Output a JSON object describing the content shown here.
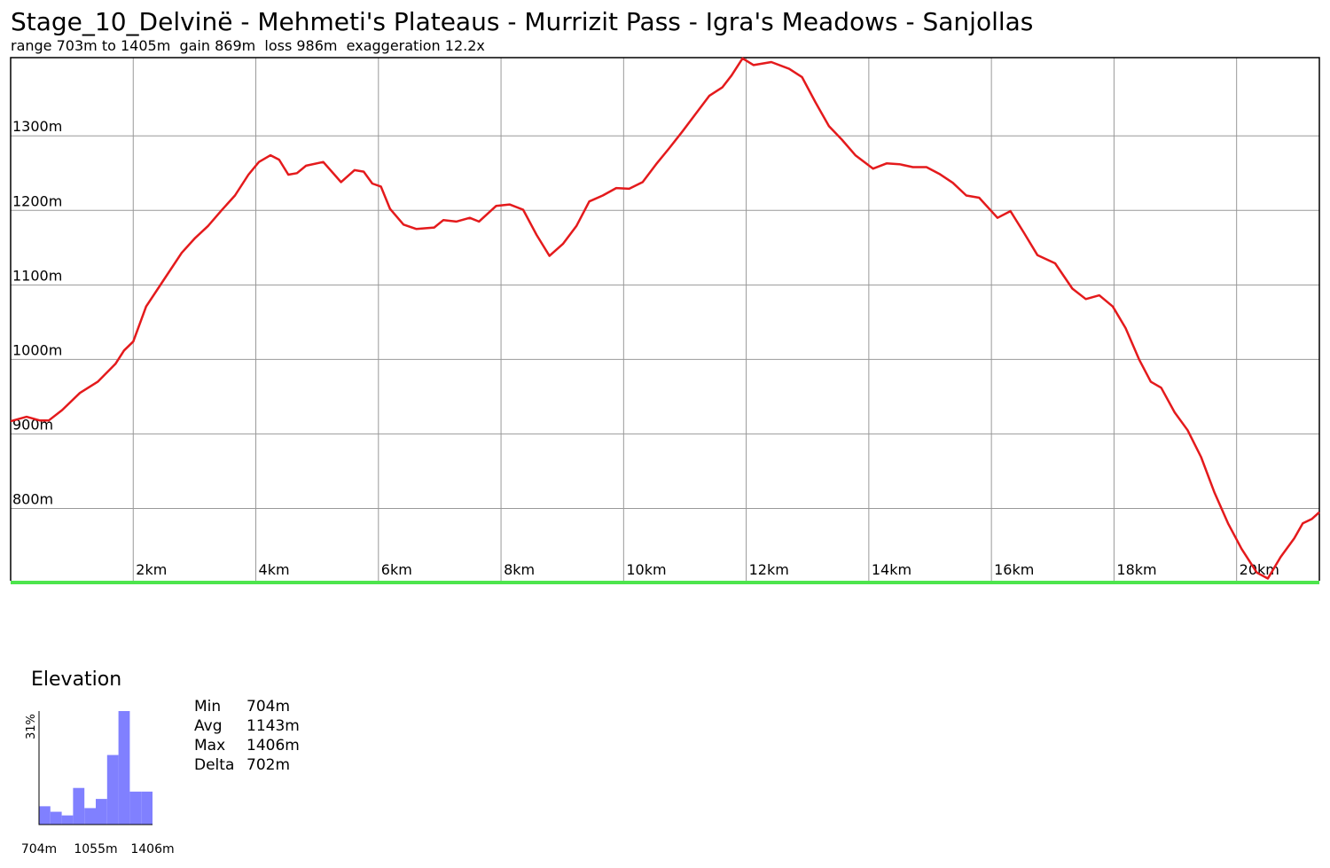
{
  "chart_data": [
    {
      "type": "line",
      "title": "Stage_10_Delvinë - Mehmeti's Plateaus - Murrizit Pass - Igra's Meadows - Sanjollas",
      "subtitle": "range 703m to 1405m  gain 869m  loss 986m  exaggeration 12.2x",
      "color": "#e41a1c",
      "grid": true,
      "xlim": [
        0,
        21.35
      ],
      "ylim": [
        703,
        1405
      ],
      "xticks": [
        {
          "value": 2,
          "label": "2km"
        },
        {
          "value": 4,
          "label": "4km"
        },
        {
          "value": 6,
          "label": "6km"
        },
        {
          "value": 8,
          "label": "8km"
        },
        {
          "value": 10,
          "label": "10km"
        },
        {
          "value": 12,
          "label": "12km"
        },
        {
          "value": 14,
          "label": "14km"
        },
        {
          "value": 16,
          "label": "16km"
        },
        {
          "value": 18,
          "label": "18km"
        },
        {
          "value": 20,
          "label": "20km"
        }
      ],
      "yticks": [
        {
          "value": 800,
          "label": "800m"
        },
        {
          "value": 900,
          "label": "900m"
        },
        {
          "value": 1000,
          "label": "1000m"
        },
        {
          "value": 1100,
          "label": "1100m"
        },
        {
          "value": 1200,
          "label": "1200m"
        },
        {
          "value": 1300,
          "label": "1300m"
        }
      ],
      "x": [
        0,
        0.26,
        0.48,
        0.62,
        0.84,
        1.13,
        1.42,
        1.71,
        1.85,
        2.0,
        2.21,
        2.5,
        2.79,
        3.01,
        3.22,
        3.44,
        3.66,
        3.88,
        4.05,
        4.24,
        4.38,
        4.53,
        4.67,
        4.82,
        5.1,
        5.39,
        5.61,
        5.76,
        5.9,
        6.04,
        6.19,
        6.41,
        6.62,
        6.91,
        7.06,
        7.27,
        7.49,
        7.64,
        7.92,
        8.14,
        8.36,
        8.58,
        8.79,
        9.01,
        9.23,
        9.44,
        9.66,
        9.88,
        10.09,
        10.31,
        10.53,
        10.74,
        10.96,
        11.18,
        11.4,
        11.61,
        11.76,
        11.94,
        12.12,
        12.41,
        12.7,
        12.91,
        13.13,
        13.35,
        13.56,
        13.78,
        14.07,
        14.29,
        14.5,
        14.72,
        14.94,
        15.15,
        15.37,
        15.59,
        15.8,
        16.1,
        16.31,
        16.53,
        16.75,
        17.04,
        17.32,
        17.54,
        17.76,
        17.98,
        18.19,
        18.41,
        18.6,
        18.77,
        18.99,
        19.2,
        19.42,
        19.64,
        19.86,
        20.08,
        20.33,
        20.51,
        20.72,
        20.94,
        21.08,
        21.23,
        21.35
      ],
      "values": [
        917,
        923,
        918,
        918,
        932,
        955,
        970,
        994,
        1012,
        1024,
        1071,
        1107,
        1143,
        1163,
        1179,
        1200,
        1220,
        1248,
        1265,
        1274,
        1268,
        1248,
        1250,
        1260,
        1265,
        1238,
        1254,
        1252,
        1236,
        1232,
        1202,
        1181,
        1175,
        1177,
        1187,
        1185,
        1190,
        1185,
        1206,
        1208,
        1201,
        1167,
        1139,
        1155,
        1179,
        1212,
        1220,
        1230,
        1229,
        1238,
        1262,
        1283,
        1306,
        1330,
        1354,
        1365,
        1381,
        1404,
        1395,
        1399,
        1390,
        1379,
        1345,
        1313,
        1295,
        1274,
        1256,
        1263,
        1262,
        1258,
        1258,
        1249,
        1237,
        1220,
        1217,
        1190,
        1199,
        1170,
        1140,
        1129,
        1095,
        1081,
        1086,
        1071,
        1042,
        1000,
        970,
        962,
        929,
        905,
        869,
        821,
        780,
        746,
        714,
        706,
        735,
        760,
        780,
        786,
        795
      ]
    },
    {
      "type": "histogram",
      "title": "Elevation",
      "color": "#8080ff",
      "bins": [
        704,
        774.2,
        844.4,
        914.6,
        984.8,
        1055,
        1125.2,
        1195.4,
        1265.6,
        1335.8,
        1406
      ],
      "values": [
        5,
        3.5,
        2.5,
        10,
        4.5,
        7,
        19,
        31,
        9,
        9
      ],
      "xlim": [
        704,
        1406
      ],
      "ylim": [
        0,
        31
      ],
      "xticks": [
        {
          "value": 704,
          "label": "704m"
        },
        {
          "value": 1055,
          "label": "1055m"
        },
        {
          "value": 1406,
          "label": "1406m"
        }
      ],
      "yticks": [
        {
          "value": 31,
          "label": "31%"
        }
      ],
      "stats": [
        {
          "label": "Min",
          "value": "704m"
        },
        {
          "label": "Avg",
          "value": "1143m"
        },
        {
          "label": "Max",
          "value": "1406m"
        },
        {
          "label": "Delta",
          "value": "702m"
        }
      ]
    }
  ]
}
